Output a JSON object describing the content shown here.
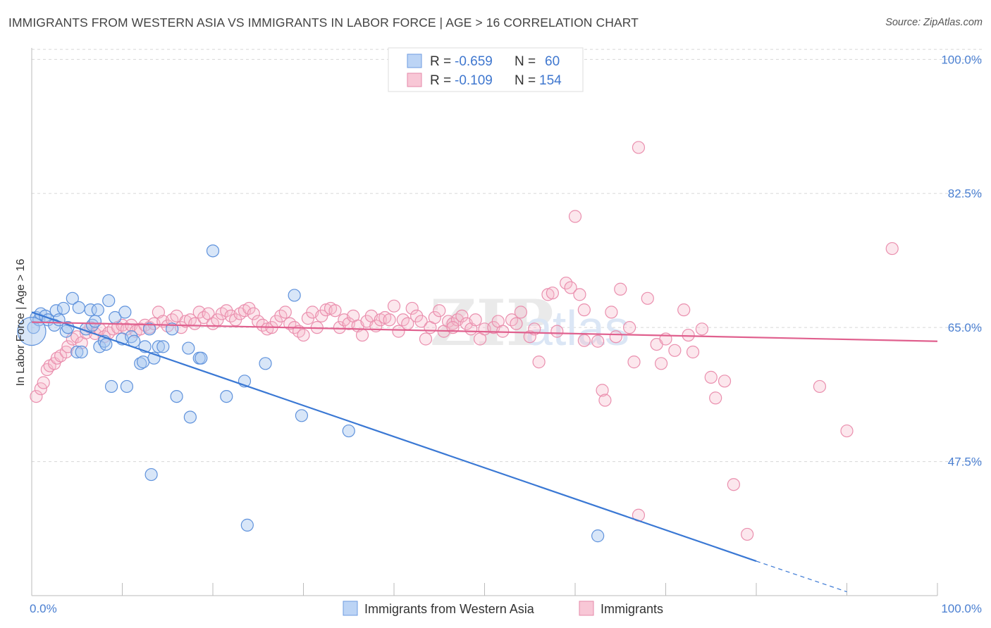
{
  "title": "IMMIGRANTS FROM WESTERN ASIA VS IMMIGRANTS IN LABOR FORCE | AGE > 16 CORRELATION CHART",
  "source": "Source: ZipAtlas.com",
  "colors": {
    "blue": "#3a78d4",
    "blue_fill": "#a9c7f0",
    "pink": "#e0608e",
    "pink_fill": "#f5b9cc",
    "axis_text": "#4a7fd1",
    "grid": "#d8d8d8"
  },
  "legend": {
    "row1": {
      "r_label": "R =",
      "r_value": "-0.659",
      "n_label": "N =",
      "n_value": "60"
    },
    "row2": {
      "r_label": "R =",
      "r_value": "-0.109",
      "n_label": "N =",
      "n_value": "154"
    }
  },
  "bottom_legend": {
    "series1": "Immigrants from Western Asia",
    "series2": "Immigrants"
  },
  "chart_data": {
    "type": "scatter",
    "title": "IMMIGRANTS FROM WESTERN ASIA VS IMMIGRANTS IN LABOR FORCE | AGE > 16 CORRELATION CHART",
    "xlabel": "",
    "ylabel": "In Labor Force | Age > 16",
    "xlim": [
      0,
      100
    ],
    "ylim": [
      30,
      101.5
    ],
    "x_tick_labels": [
      "0.0%",
      "100.0%"
    ],
    "y_ticks": [
      47.5,
      65.0,
      82.5,
      100.0
    ],
    "y_tick_labels": [
      "47.5%",
      "65.0%",
      "82.5%",
      "100.0%"
    ],
    "grid": true,
    "legend_placement": "top-center",
    "watermark": "ZIPatlas",
    "series": [
      {
        "name": "Immigrants from Western Asia",
        "color": "#3a78d4",
        "trend": {
          "x0": 0,
          "y0": 67.0,
          "x1": 80,
          "y1": 34.5,
          "dash_x1": 90,
          "dash_y1": 30.5
        },
        "points": [
          [
            0.2,
            65.0
          ],
          [
            0.5,
            66.3
          ],
          [
            0.8,
            66.0
          ],
          [
            1.0,
            66.8
          ],
          [
            1.5,
            66.5
          ],
          [
            1.8,
            66.0
          ],
          [
            2.5,
            65.3
          ],
          [
            2.7,
            67.2
          ],
          [
            3.0,
            66.0
          ],
          [
            3.5,
            67.5
          ],
          [
            3.8,
            64.5
          ],
          [
            4.0,
            65.0
          ],
          [
            4.5,
            68.8
          ],
          [
            5.0,
            61.8
          ],
          [
            5.2,
            67.6
          ],
          [
            5.5,
            61.8
          ],
          [
            6.0,
            64.8
          ],
          [
            6.5,
            67.3
          ],
          [
            6.7,
            65.3
          ],
          [
            7.0,
            65.8
          ],
          [
            7.3,
            67.3
          ],
          [
            7.5,
            62.5
          ],
          [
            8.0,
            63.2
          ],
          [
            8.2,
            62.8
          ],
          [
            8.5,
            68.5
          ],
          [
            8.8,
            57.3
          ],
          [
            9.2,
            66.3
          ],
          [
            10.0,
            63.5
          ],
          [
            10.3,
            67.0
          ],
          [
            10.5,
            57.3
          ],
          [
            11.0,
            63.8
          ],
          [
            11.3,
            63.2
          ],
          [
            12.0,
            60.3
          ],
          [
            12.3,
            60.5
          ],
          [
            12.5,
            62.5
          ],
          [
            13.0,
            64.8
          ],
          [
            13.2,
            45.8
          ],
          [
            13.5,
            61.0
          ],
          [
            14.0,
            62.5
          ],
          [
            14.5,
            62.5
          ],
          [
            15.5,
            64.8
          ],
          [
            16.0,
            56.0
          ],
          [
            17.3,
            62.3
          ],
          [
            17.5,
            53.3
          ],
          [
            18.5,
            61.0
          ],
          [
            18.7,
            61.0
          ],
          [
            20.0,
            75.0
          ],
          [
            21.5,
            56.0
          ],
          [
            23.5,
            58.0
          ],
          [
            23.8,
            39.2
          ],
          [
            25.8,
            60.3
          ],
          [
            29.0,
            69.2
          ],
          [
            29.8,
            53.5
          ],
          [
            35.0,
            51.5
          ],
          [
            62.5,
            37.8
          ],
          [
            0.0,
            64.5
          ]
        ]
      },
      {
        "name": "Immigrants",
        "color": "#e0608e",
        "trend": {
          "x0": 0,
          "y0": 65.7,
          "x1": 100,
          "y1": 63.2
        },
        "points": [
          [
            0.5,
            56.0
          ],
          [
            1.0,
            57.0
          ],
          [
            1.3,
            57.8
          ],
          [
            1.7,
            59.5
          ],
          [
            2.0,
            60.0
          ],
          [
            2.5,
            60.3
          ],
          [
            2.8,
            61.0
          ],
          [
            3.2,
            61.3
          ],
          [
            3.8,
            61.8
          ],
          [
            4.0,
            62.5
          ],
          [
            4.5,
            63.5
          ],
          [
            5.0,
            63.8
          ],
          [
            5.5,
            63.0
          ],
          [
            6.0,
            64.3
          ],
          [
            6.5,
            65.0
          ],
          [
            7.0,
            64.2
          ],
          [
            7.5,
            64.8
          ],
          [
            8.0,
            63.8
          ],
          [
            8.5,
            64.3
          ],
          [
            9.0,
            64.8
          ],
          [
            9.5,
            65.0
          ],
          [
            10.0,
            65.3
          ],
          [
            10.5,
            64.8
          ],
          [
            11.0,
            65.3
          ],
          [
            11.5,
            64.5
          ],
          [
            12.0,
            64.8
          ],
          [
            12.5,
            65.3
          ],
          [
            13.0,
            65.0
          ],
          [
            13.5,
            65.5
          ],
          [
            14.0,
            67.0
          ],
          [
            14.5,
            65.8
          ],
          [
            15.0,
            65.2
          ],
          [
            15.5,
            66.0
          ],
          [
            16.0,
            66.5
          ],
          [
            16.5,
            65.0
          ],
          [
            17.0,
            65.8
          ],
          [
            17.5,
            66.0
          ],
          [
            18.0,
            65.5
          ],
          [
            18.5,
            67.0
          ],
          [
            19.0,
            66.3
          ],
          [
            19.5,
            66.8
          ],
          [
            20.0,
            65.5
          ],
          [
            20.5,
            66.0
          ],
          [
            21.0,
            66.8
          ],
          [
            21.5,
            67.2
          ],
          [
            22.0,
            66.5
          ],
          [
            22.5,
            66.0
          ],
          [
            23.0,
            66.8
          ],
          [
            23.5,
            67.2
          ],
          [
            24.0,
            67.5
          ],
          [
            24.5,
            66.8
          ],
          [
            25.0,
            65.8
          ],
          [
            25.5,
            65.3
          ],
          [
            26.0,
            64.8
          ],
          [
            26.5,
            65.0
          ],
          [
            27.0,
            65.8
          ],
          [
            27.5,
            66.5
          ],
          [
            28.0,
            67.0
          ],
          [
            28.5,
            65.5
          ],
          [
            29.0,
            65.0
          ],
          [
            29.5,
            64.5
          ],
          [
            30.0,
            64.0
          ],
          [
            30.5,
            66.2
          ],
          [
            31.0,
            67.0
          ],
          [
            31.5,
            65.0
          ],
          [
            32.0,
            66.5
          ],
          [
            32.5,
            67.3
          ],
          [
            33.0,
            67.5
          ],
          [
            33.5,
            67.2
          ],
          [
            34.0,
            65.0
          ],
          [
            34.5,
            66.0
          ],
          [
            35.0,
            65.5
          ],
          [
            35.5,
            66.5
          ],
          [
            36.0,
            65.2
          ],
          [
            36.5,
            64.0
          ],
          [
            37.0,
            65.8
          ],
          [
            37.5,
            66.5
          ],
          [
            38.0,
            65.2
          ],
          [
            38.5,
            66.0
          ],
          [
            39.0,
            66.3
          ],
          [
            39.5,
            66.0
          ],
          [
            40.0,
            67.8
          ],
          [
            40.5,
            64.5
          ],
          [
            41.0,
            66.0
          ],
          [
            41.5,
            65.5
          ],
          [
            42.0,
            67.5
          ],
          [
            42.5,
            66.5
          ],
          [
            43.0,
            65.8
          ],
          [
            43.5,
            63.5
          ],
          [
            44.0,
            65.0
          ],
          [
            44.5,
            66.3
          ],
          [
            45.0,
            67.2
          ],
          [
            45.5,
            64.5
          ],
          [
            46.0,
            65.8
          ],
          [
            46.5,
            65.5
          ],
          [
            47.0,
            66.0
          ],
          [
            47.5,
            66.5
          ],
          [
            48.0,
            65.5
          ],
          [
            48.5,
            64.8
          ],
          [
            49.0,
            66.0
          ],
          [
            49.5,
            63.5
          ],
          [
            50.0,
            64.8
          ],
          [
            51.0,
            65.0
          ],
          [
            51.5,
            65.8
          ],
          [
            52.0,
            64.5
          ],
          [
            53.0,
            66.0
          ],
          [
            53.5,
            65.5
          ],
          [
            54.0,
            67.0
          ],
          [
            55.0,
            63.8
          ],
          [
            55.5,
            64.8
          ],
          [
            56.0,
            60.5
          ],
          [
            57.0,
            69.3
          ],
          [
            57.5,
            69.5
          ],
          [
            58.0,
            64.5
          ],
          [
            59.0,
            70.8
          ],
          [
            59.5,
            70.2
          ],
          [
            60.0,
            79.5
          ],
          [
            60.5,
            69.3
          ],
          [
            61.0,
            67.3
          ],
          [
            62.5,
            63.2
          ],
          [
            63.0,
            56.8
          ],
          [
            63.3,
            55.5
          ],
          [
            64.0,
            67.0
          ],
          [
            64.5,
            63.8
          ],
          [
            65.0,
            70.0
          ],
          [
            66.0,
            65.0
          ],
          [
            66.5,
            60.5
          ],
          [
            67.0,
            88.5
          ],
          [
            68.0,
            68.8
          ],
          [
            69.0,
            62.8
          ],
          [
            69.5,
            60.3
          ],
          [
            70.0,
            63.5
          ],
          [
            71.0,
            62.0
          ],
          [
            72.0,
            67.3
          ],
          [
            72.5,
            64.0
          ],
          [
            73.0,
            61.8
          ],
          [
            74.0,
            64.8
          ],
          [
            75.0,
            58.5
          ],
          [
            75.5,
            55.8
          ],
          [
            76.5,
            58.0
          ],
          [
            77.5,
            44.5
          ],
          [
            79.0,
            38.0
          ],
          [
            87.0,
            57.3
          ],
          [
            90.0,
            51.5
          ],
          [
            95.0,
            75.3
          ],
          [
            67.0,
            40.5
          ],
          [
            61.0,
            63.3
          ],
          [
            46.5,
            65.0
          ]
        ]
      }
    ]
  }
}
